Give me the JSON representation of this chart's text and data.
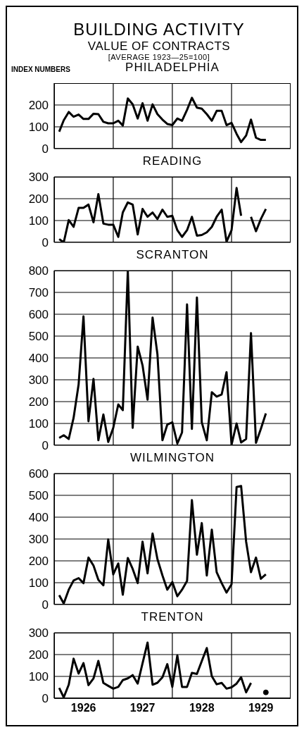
{
  "chart_data": [
    {
      "type": "line",
      "title": "PHILADELPHIA",
      "ylabel": "INDEX NUMBERS",
      "annotations": [
        "BUILDING ACTIVITY",
        "VALUE OF CONTRACTS",
        "[AVERAGE 1923—25=100]"
      ],
      "x": [
        "1926-02",
        "1926-03",
        "1926-04",
        "1926-05",
        "1926-06",
        "1926-07",
        "1926-08",
        "1926-09",
        "1926-10",
        "1926-11",
        "1926-12",
        "1927-01",
        "1927-02",
        "1927-03",
        "1927-04",
        "1927-05",
        "1927-06",
        "1927-07",
        "1927-08",
        "1927-09",
        "1927-10",
        "1927-11",
        "1927-12",
        "1928-01",
        "1928-02",
        "1928-03",
        "1928-04",
        "1928-05",
        "1928-06",
        "1928-07",
        "1928-08",
        "1928-09",
        "1928-10",
        "1928-11",
        "1928-12",
        "1929-01",
        "1929-02",
        "1929-03",
        "1929-04",
        "1929-05",
        "1929-06",
        "1929-07",
        "1929-08"
      ],
      "series": [
        {
          "color": "#000000",
          "values": [
            78,
            130,
            168,
            146,
            156,
            136,
            136,
            160,
            158,
            123,
            116,
            116,
            128,
            106,
            230,
            203,
            138,
            208,
            128,
            203,
            158,
            133,
            113,
            108,
            138,
            128,
            178,
            233,
            188,
            183,
            158,
            128,
            173,
            173,
            108,
            118,
            68,
            30,
            60,
            133,
            50,
            40,
            40
          ]
        }
      ],
      "xlim": [
        "1926-01",
        "1930-01"
      ],
      "ylim": [
        0,
        300
      ],
      "yticks": [
        0,
        100,
        200
      ],
      "grid": "y",
      "tick_labels": "y",
      "marker": "none",
      "line_style": "solid",
      "ref_lines": [
        {
          "axis": "x",
          "value": "1927-01",
          "color": "#000000"
        },
        {
          "axis": "x",
          "value": "1928-01",
          "color": "#000000"
        },
        {
          "axis": "x",
          "value": "1929-01",
          "color": "#000000"
        }
      ]
    },
    {
      "type": "line",
      "title": "READING",
      "x": [
        "1926-02",
        "1926-03",
        "1926-04",
        "1926-05",
        "1926-06",
        "1926-07",
        "1926-08",
        "1926-09",
        "1926-10",
        "1926-11",
        "1926-12",
        "1927-01",
        "1927-02",
        "1927-03",
        "1927-04",
        "1927-05",
        "1927-06",
        "1927-07",
        "1927-08",
        "1927-09",
        "1927-10",
        "1927-11",
        "1927-12",
        "1928-01",
        "1928-02",
        "1928-03",
        "1928-04",
        "1928-05",
        "1928-06",
        "1928-07",
        "1928-08",
        "1928-09",
        "1928-10",
        "1928-11",
        "1928-12",
        "1929-01",
        "1929-02",
        "1929-03",
        "1929-04",
        "1929-05",
        "1929-06",
        "1929-07",
        "1929-08"
      ],
      "series": [
        {
          "color": "#000000",
          "values": [
            15,
            0,
            102,
            71,
            158,
            158,
            173,
            92,
            221,
            86,
            81,
            81,
            25,
            137,
            183,
            173,
            36,
            153,
            117,
            137,
            107,
            150,
            117,
            122,
            56,
            25,
            56,
            117,
            31,
            34,
            46,
            71,
            117,
            150,
            3,
            56,
            249,
            122,
            null,
            117,
            51,
            107,
            153
          ]
        }
      ],
      "xlim": [
        "1926-01",
        "1930-01"
      ],
      "ylim": [
        0,
        300
      ],
      "yticks": [
        0,
        100,
        200,
        300
      ],
      "grid": "y",
      "tick_labels": "y",
      "marker": "none",
      "line_style": "solid",
      "ref_lines": [
        {
          "axis": "x",
          "value": "1927-01",
          "color": "#000000"
        },
        {
          "axis": "x",
          "value": "1928-01",
          "color": "#000000"
        },
        {
          "axis": "x",
          "value": "1929-01",
          "color": "#000000"
        }
      ]
    },
    {
      "type": "line",
      "title": "SCRANTON",
      "x": [
        "1926-02",
        "1926-03",
        "1926-04",
        "1926-05",
        "1926-06",
        "1926-07",
        "1926-08",
        "1926-09",
        "1926-10",
        "1926-11",
        "1926-12",
        "1927-01",
        "1927-02",
        "1927-03",
        "1927-04",
        "1927-05",
        "1927-06",
        "1927-07",
        "1927-08",
        "1927-09",
        "1927-10",
        "1927-11",
        "1927-12",
        "1928-01",
        "1928-02",
        "1928-03",
        "1928-04",
        "1928-05",
        "1928-06",
        "1928-07",
        "1928-08",
        "1928-09",
        "1928-10",
        "1928-11",
        "1928-12",
        "1929-01",
        "1929-02",
        "1929-03",
        "1929-04",
        "1929-05",
        "1929-06",
        "1929-07",
        "1929-08"
      ],
      "series": [
        {
          "color": "#000000",
          "values": [
            34,
            46,
            29,
            126,
            279,
            590,
            110,
            304,
            23,
            141,
            15,
            80,
            187,
            161,
            800,
            80,
            452,
            366,
            209,
            585,
            417,
            23,
            95,
            105,
            8,
            59,
            645,
            75,
            677,
            105,
            23,
            243,
            223,
            233,
            335,
            3,
            100,
            13,
            29,
            514,
            11,
            75,
            146
          ]
        }
      ],
      "xlim": [
        "1926-01",
        "1930-01"
      ],
      "ylim": [
        0,
        800
      ],
      "yticks": [
        0,
        100,
        200,
        300,
        400,
        500,
        600,
        700,
        800
      ],
      "grid": "y",
      "tick_labels": "y",
      "marker": "none",
      "line_style": "solid",
      "ref_lines": [
        {
          "axis": "x",
          "value": "1927-01",
          "color": "#000000"
        },
        {
          "axis": "x",
          "value": "1928-01",
          "color": "#000000"
        },
        {
          "axis": "x",
          "value": "1929-01",
          "color": "#000000"
        }
      ]
    },
    {
      "type": "line",
      "title": "WILMINGTON",
      "x": [
        "1926-02",
        "1926-03",
        "1926-04",
        "1926-05",
        "1926-06",
        "1926-07",
        "1926-08",
        "1926-09",
        "1926-10",
        "1926-11",
        "1926-12",
        "1927-01",
        "1927-02",
        "1927-03",
        "1927-04",
        "1927-05",
        "1927-06",
        "1927-07",
        "1927-08",
        "1927-09",
        "1927-10",
        "1927-11",
        "1927-12",
        "1928-01",
        "1928-02",
        "1928-03",
        "1928-04",
        "1928-05",
        "1928-06",
        "1928-07",
        "1928-08",
        "1928-09",
        "1928-10",
        "1928-11",
        "1928-12",
        "1929-01",
        "1929-02",
        "1929-03",
        "1929-04",
        "1929-05",
        "1929-06",
        "1929-07",
        "1929-08"
      ],
      "series": [
        {
          "color": "#000000",
          "values": [
            43,
            5,
            68,
            110,
            121,
            98,
            215,
            178,
            113,
            88,
            298,
            138,
            188,
            45,
            213,
            163,
            98,
            288,
            143,
            325,
            208,
            133,
            68,
            103,
            38,
            68,
            108,
            478,
            228,
            373,
            133,
            343,
            148,
            98,
            55,
            93,
            538,
            543,
            288,
            148,
            215,
            118,
            138
          ]
        }
      ],
      "xlim": [
        "1926-01",
        "1930-01"
      ],
      "ylim": [
        0,
        600
      ],
      "yticks": [
        0,
        100,
        200,
        300,
        400,
        500,
        600
      ],
      "grid": "y",
      "tick_labels": "y",
      "marker": "none",
      "line_style": "solid",
      "ref_lines": [
        {
          "axis": "x",
          "value": "1927-01",
          "color": "#000000"
        },
        {
          "axis": "x",
          "value": "1928-01",
          "color": "#000000"
        },
        {
          "axis": "x",
          "value": "1929-01",
          "color": "#000000"
        }
      ]
    },
    {
      "type": "line",
      "title": "TRENTON",
      "x": [
        "1926-02",
        "1926-03",
        "1926-04",
        "1926-05",
        "1926-06",
        "1926-07",
        "1926-08",
        "1926-09",
        "1926-10",
        "1926-11",
        "1926-12",
        "1927-01",
        "1927-02",
        "1927-03",
        "1927-04",
        "1927-05",
        "1927-06",
        "1927-07",
        "1927-08",
        "1927-09",
        "1927-10",
        "1927-11",
        "1927-12",
        "1928-01",
        "1928-02",
        "1928-03",
        "1928-04",
        "1928-05",
        "1928-06",
        "1928-07",
        "1928-08",
        "1928-09",
        "1928-10",
        "1928-11",
        "1928-12",
        "1929-01",
        "1929-02",
        "1929-03",
        "1929-04",
        "1929-05",
        "1929-06",
        "1929-07",
        "1929-08"
      ],
      "series": [
        {
          "color": "#000000",
          "values": [
            47,
            4,
            62,
            181,
            113,
            161,
            60,
            91,
            171,
            70,
            57,
            44,
            52,
            83,
            91,
            106,
            67,
            160,
            255,
            62,
            71,
            96,
            156,
            52,
            196,
            52,
            52,
            116,
            111,
            170,
            230,
            101,
            64,
            70,
            44,
            50,
            67,
            96,
            27,
            70,
            null,
            null,
            27
          ]
        }
      ],
      "xlim": [
        "1926-01",
        "1930-01"
      ],
      "xticks": [
        {
          "value": "1926-07",
          "label": "1926"
        },
        {
          "value": "1927-07",
          "label": "1927"
        },
        {
          "value": "1928-07",
          "label": "1928"
        },
        {
          "value": "1929-07",
          "label": "1929"
        }
      ],
      "ylim": [
        0,
        300
      ],
      "yticks": [
        0,
        100,
        200,
        300
      ],
      "grid": "y",
      "marker": "none",
      "line_style": "solid",
      "ref_lines": [
        {
          "axis": "x",
          "value": "1927-01",
          "color": "#000000"
        },
        {
          "axis": "x",
          "value": "1928-01",
          "color": "#000000"
        },
        {
          "axis": "x",
          "value": "1929-01",
          "color": "#000000"
        }
      ]
    }
  ]
}
